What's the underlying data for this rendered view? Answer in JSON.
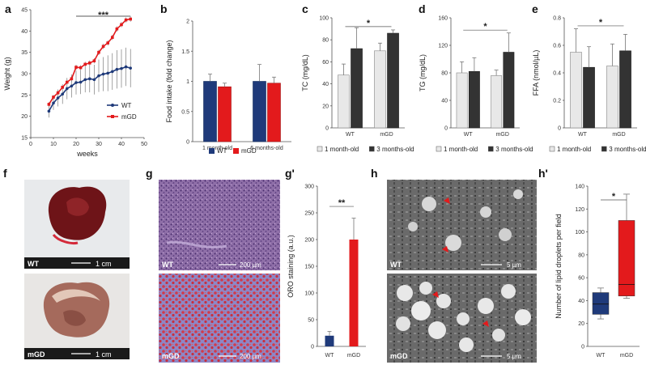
{
  "panels": {
    "a": "a",
    "b": "b",
    "c": "c",
    "d": "d",
    "e": "e",
    "f": "f",
    "g": "g",
    "g_prime": "g'",
    "h": "h",
    "h_prime": "h'"
  },
  "colors": {
    "wt": "#1f3a7a",
    "mgd": "#e31a1c",
    "light": "#e8e8e8",
    "dark": "#333333"
  },
  "chart_data": [
    {
      "id": "a",
      "type": "line",
      "xlabel": "weeks",
      "ylabel": "Weight (g)",
      "xlim": [
        0,
        50
      ],
      "ylim": [
        15,
        45
      ],
      "xticks": [
        0,
        10,
        20,
        30,
        40,
        50
      ],
      "yticks": [
        15,
        20,
        25,
        30,
        35,
        40,
        45
      ],
      "significance": "***",
      "series": [
        {
          "name": "WT",
          "x": [
            8,
            10,
            12,
            14,
            16,
            18,
            20,
            22,
            24,
            26,
            28,
            30,
            32,
            34,
            36,
            38,
            40,
            42,
            44
          ],
          "y": [
            21.2,
            23.1,
            24.3,
            25.2,
            26.5,
            27.1,
            27.9,
            28.0,
            28.6,
            28.8,
            28.6,
            29.5,
            29.9,
            30.1,
            30.5,
            31.0,
            31.2,
            31.6,
            31.3
          ],
          "err": [
            1.5,
            1.6,
            2.0,
            2.3,
            2.5,
            2.7,
            2.8,
            2.8,
            3.0,
            3.2,
            3.5,
            3.8,
            4.0,
            4.2,
            4.3,
            4.5,
            4.5,
            4.5,
            4.5
          ]
        },
        {
          "name": "mGD",
          "x": [
            8,
            10,
            12,
            14,
            16,
            18,
            20,
            22,
            24,
            26,
            28,
            30,
            32,
            34,
            36,
            38,
            40,
            42,
            44
          ],
          "y": [
            22.8,
            24.5,
            25.5,
            26.8,
            28.0,
            28.8,
            31.5,
            31.4,
            32.2,
            32.5,
            33.0,
            35.0,
            36.4,
            37.2,
            38.5,
            40.5,
            41.5,
            42.6,
            42.8
          ],
          "err": [
            0.5,
            0.5,
            0.5,
            0.6,
            0.6,
            0.6,
            0.6,
            0.6,
            0.6,
            0.6,
            0.6,
            0.6,
            0.6,
            0.6,
            0.6,
            0.6,
            0.6,
            0.6,
            0.6
          ]
        }
      ]
    },
    {
      "id": "b",
      "type": "bar",
      "ylabel": "Food intake (fold change)",
      "categories": [
        "1 month-old",
        "6 months-old"
      ],
      "ylim": [
        0,
        2
      ],
      "yticks": [
        0,
        0.5,
        1,
        1.5,
        2
      ],
      "series": [
        {
          "name": "WT",
          "values": [
            1.0,
            1.0
          ],
          "err": [
            0.12,
            0.28
          ]
        },
        {
          "name": "mGD",
          "values": [
            0.91,
            0.97
          ],
          "err": [
            0.06,
            0.1
          ]
        }
      ]
    },
    {
      "id": "c",
      "type": "bar",
      "ylabel": "TC (mg/dL)",
      "categories": [
        "WT",
        "mGD"
      ],
      "ylim": [
        0,
        100
      ],
      "yticks": [
        0,
        20,
        40,
        60,
        80,
        100
      ],
      "significance": "*",
      "series": [
        {
          "name": "1 month-old",
          "values": [
            48,
            70
          ],
          "err": [
            10,
            7
          ]
        },
        {
          "name": "3 months-old",
          "values": [
            72,
            86
          ],
          "err": [
            19,
            3
          ]
        }
      ]
    },
    {
      "id": "d",
      "type": "bar",
      "ylabel": "TG (mg/dL)",
      "categories": [
        "WT",
        "mGD"
      ],
      "ylim": [
        0,
        160
      ],
      "yticks": [
        0,
        40,
        80,
        120,
        160
      ],
      "significance": "*",
      "series": [
        {
          "name": "1 month-old",
          "values": [
            80,
            76
          ],
          "err": [
            16,
            8
          ]
        },
        {
          "name": "3 months-old",
          "values": [
            82,
            110
          ],
          "err": [
            20,
            28
          ]
        }
      ]
    },
    {
      "id": "e",
      "type": "bar",
      "ylabel": "FFA (nmol/µL)",
      "categories": [
        "WT",
        "mGD"
      ],
      "ylim": [
        0,
        0.8
      ],
      "yticks": [
        0,
        0.2,
        0.4,
        0.6,
        0.8
      ],
      "significance": "*",
      "series": [
        {
          "name": "1 month-old",
          "values": [
            0.55,
            0.45
          ],
          "err": [
            0.17,
            0.16
          ]
        },
        {
          "name": "3 months-old",
          "values": [
            0.44,
            0.56
          ],
          "err": [
            0.15,
            0.12
          ]
        }
      ]
    },
    {
      "id": "g_prime",
      "type": "bar",
      "ylabel": "ORO staining (a.u.)",
      "categories": [
        "WT",
        "mGD"
      ],
      "ylim": [
        0,
        300
      ],
      "yticks": [
        0,
        50,
        100,
        150,
        200,
        250,
        300
      ],
      "significance": "**",
      "values": [
        20,
        200
      ],
      "err": [
        8,
        40
      ]
    },
    {
      "id": "h_prime",
      "type": "box",
      "ylabel": "Number of lipid droplets per field",
      "categories": [
        "WT",
        "mGD"
      ],
      "ylim": [
        0,
        140
      ],
      "yticks": [
        0,
        20,
        40,
        60,
        80,
        100,
        120,
        140
      ],
      "significance": "*",
      "boxes": [
        {
          "min": 24,
          "q1": 28,
          "median": 37,
          "q3": 47,
          "max": 51
        },
        {
          "min": 42,
          "q1": 44,
          "median": 54,
          "q3": 110,
          "max": 133
        }
      ]
    }
  ],
  "images": {
    "f_wt_label": "WT",
    "f_mgd_label": "mGD",
    "f_scale": "1 cm",
    "g_wt_label": "WT",
    "g_mgd_label": "mGD",
    "g_scale": "200 µm",
    "h_wt_label": "WT",
    "h_mgd_label": "mGD",
    "h_scale": "5 µm"
  }
}
